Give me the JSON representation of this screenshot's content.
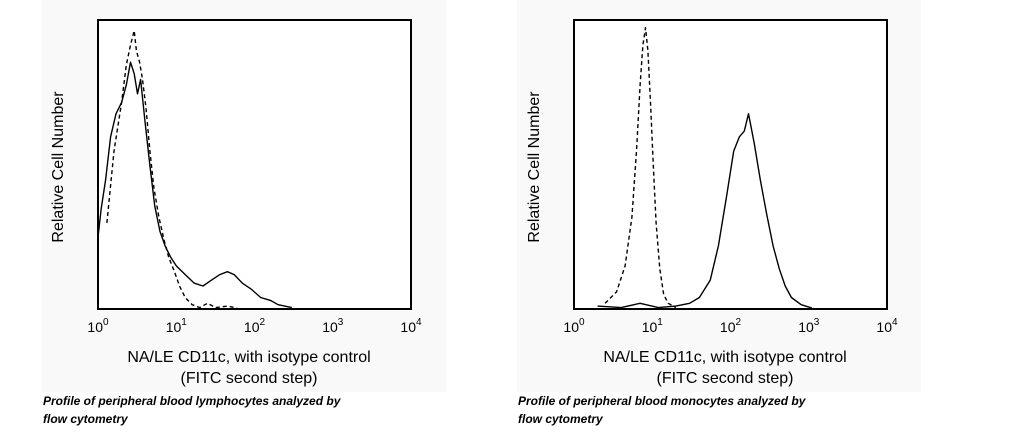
{
  "chart_data": [
    {
      "type": "line",
      "title": "",
      "xlabel": [
        "NA/LE CD11c, with isotype control",
        "(FITC second step)"
      ],
      "ylabel": "Relative Cell Number",
      "xscale": "log",
      "xlim": [
        1,
        10000
      ],
      "xticks": [
        {
          "base": "10",
          "exp": "0"
        },
        {
          "base": "10",
          "exp": "1"
        },
        {
          "base": "10",
          "exp": "2"
        },
        {
          "base": "10",
          "exp": "3"
        },
        {
          "base": "10",
          "exp": "4"
        }
      ],
      "grid": false,
      "caption": [
        "Profile of peripheral blood lymphocytes analyzed by",
        "flow cytometry"
      ],
      "series": [
        {
          "style": "solid",
          "x": [
            1,
            1.1,
            1.25,
            1.45,
            1.7,
            2.0,
            2.3,
            2.6,
            2.9,
            3.2,
            3.5,
            4.0,
            4.6,
            5.3,
            6.2,
            7.2,
            8.5,
            10,
            13,
            17,
            22,
            28,
            36,
            45,
            55,
            70,
            90,
            120,
            160,
            200,
            300
          ],
          "y": [
            0.25,
            0.35,
            0.45,
            0.6,
            0.68,
            0.72,
            0.78,
            0.86,
            0.82,
            0.75,
            0.8,
            0.65,
            0.5,
            0.36,
            0.27,
            0.22,
            0.18,
            0.15,
            0.12,
            0.09,
            0.08,
            0.1,
            0.12,
            0.13,
            0.12,
            0.09,
            0.07,
            0.04,
            0.03,
            0.015,
            0.005
          ]
        },
        {
          "style": "dashed",
          "x": [
            1.3,
            1.6,
            2.0,
            2.3,
            2.6,
            2.9,
            3.1,
            3.4,
            3.7,
            4.1,
            4.6,
            5.2,
            6.0,
            7.0,
            8.0,
            9.5,
            11,
            13,
            16,
            20,
            25,
            32,
            45,
            60
          ],
          "y": [
            0.3,
            0.55,
            0.72,
            0.85,
            0.92,
            0.97,
            0.9,
            0.86,
            0.8,
            0.7,
            0.55,
            0.42,
            0.32,
            0.24,
            0.18,
            0.13,
            0.08,
            0.04,
            0.015,
            0.005,
            0.02,
            0.005,
            0.01,
            0.003
          ]
        }
      ]
    },
    {
      "type": "line",
      "title": "",
      "xlabel": [
        "NA/LE CD11c, with isotype control",
        "(FITC second step)"
      ],
      "ylabel": "Relative Cell Number",
      "xscale": "log",
      "xlim": [
        1,
        10000
      ],
      "xticks": [
        {
          "base": "10",
          "exp": "0"
        },
        {
          "base": "10",
          "exp": "1"
        },
        {
          "base": "10",
          "exp": "2"
        },
        {
          "base": "10",
          "exp": "3"
        },
        {
          "base": "10",
          "exp": "4"
        }
      ],
      "grid": false,
      "caption": [
        "Profile of peripheral blood monocytes analyzed by",
        "flow cytometry"
      ],
      "series": [
        {
          "style": "solid",
          "x": [
            2,
            4,
            7,
            12,
            20,
            30,
            40,
            55,
            70,
            90,
            110,
            130,
            150,
            170,
            200,
            240,
            290,
            350,
            420,
            500,
            600,
            800,
            1100
          ],
          "y": [
            0.01,
            0.005,
            0.02,
            0.005,
            0.01,
            0.02,
            0.04,
            0.1,
            0.22,
            0.4,
            0.55,
            0.6,
            0.62,
            0.68,
            0.58,
            0.45,
            0.33,
            0.22,
            0.14,
            0.08,
            0.04,
            0.015,
            0.003
          ]
        },
        {
          "style": "dashed",
          "x": [
            2.5,
            3.5,
            4.5,
            5.5,
            6.3,
            7.0,
            7.6,
            8.2,
            8.8,
            9.5,
            10.3,
            11.2,
            12.5,
            14,
            16,
            20
          ],
          "y": [
            0.02,
            0.06,
            0.15,
            0.32,
            0.55,
            0.78,
            0.92,
            0.98,
            0.9,
            0.72,
            0.5,
            0.3,
            0.14,
            0.05,
            0.02,
            0.005
          ]
        }
      ]
    }
  ]
}
